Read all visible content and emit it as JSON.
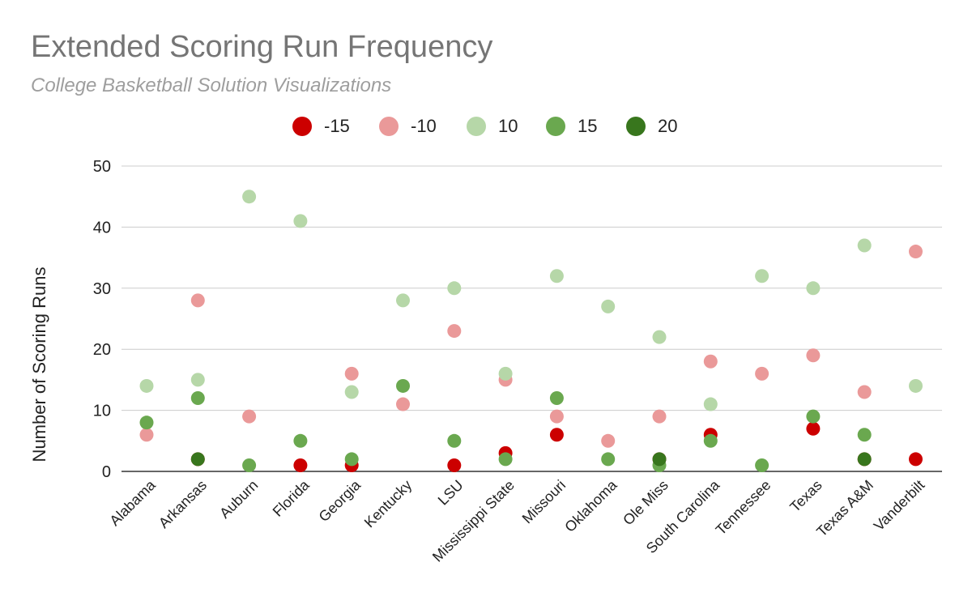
{
  "chart_data": {
    "type": "scatter",
    "title": "Extended Scoring Run Frequency",
    "subtitle": "College Basketball Solution Visualizations",
    "xlabel": "",
    "ylabel": "Number of Scoring Runs",
    "ylim": [
      0,
      50
    ],
    "yticks": [
      "0",
      "10",
      "20",
      "30",
      "40",
      "50"
    ],
    "grid": true,
    "legend_position": "top",
    "categories": [
      "Alabama",
      "Arkansas",
      "Auburn",
      "Florida",
      "Georgia",
      "Kentucky",
      "LSU",
      "Mississippi State",
      "Missouri",
      "Oklahoma",
      "Ole Miss",
      "South Carolina",
      "Tennessee",
      "Texas",
      "Texas A&M",
      "Vanderbilt"
    ],
    "series": [
      {
        "name": "-15",
        "color": "#cc0000",
        "values": [
          null,
          2,
          null,
          1,
          1,
          null,
          1,
          3,
          6,
          null,
          2,
          6,
          null,
          7,
          2,
          2
        ]
      },
      {
        "name": "-10",
        "color": "#ea9999",
        "values": [
          6,
          28,
          9,
          null,
          16,
          11,
          23,
          15,
          9,
          5,
          9,
          18,
          16,
          19,
          13,
          36
        ]
      },
      {
        "name": "10",
        "color": "#b6d7a8",
        "values": [
          14,
          15,
          45,
          41,
          13,
          28,
          30,
          16,
          32,
          27,
          22,
          11,
          32,
          30,
          37,
          14
        ]
      },
      {
        "name": "15",
        "color": "#6aa84f",
        "values": [
          8,
          12,
          1,
          5,
          2,
          14,
          5,
          2,
          12,
          2,
          1,
          5,
          1,
          9,
          6,
          null
        ]
      },
      {
        "name": "20",
        "color": "#38761d",
        "values": [
          null,
          2,
          null,
          null,
          null,
          null,
          null,
          null,
          null,
          null,
          2,
          null,
          null,
          null,
          2,
          null
        ]
      }
    ]
  }
}
